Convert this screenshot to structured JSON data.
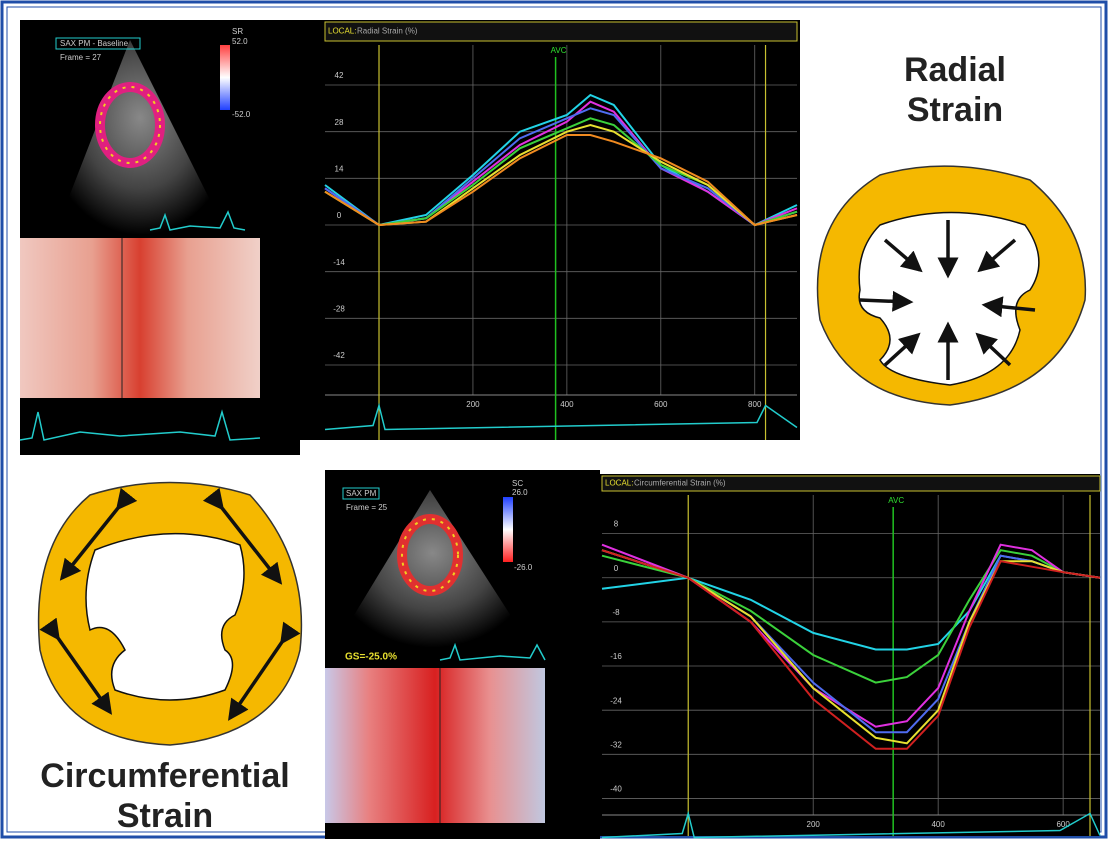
{
  "chart_data": [
    {
      "type": "line",
      "title_prefix": "LOCAL:",
      "title": "Radial Strain (%)",
      "x": [
        -115,
        0,
        100,
        200,
        300,
        400,
        450,
        500,
        600,
        700,
        800,
        890
      ],
      "series": [
        {
          "color": "#22d3e6",
          "values": [
            12,
            0,
            3,
            15,
            28,
            33,
            39,
            36,
            18,
            10,
            0,
            6
          ]
        },
        {
          "color": "#e030e0",
          "values": [
            11,
            0,
            2,
            13,
            24,
            31,
            37,
            34,
            17,
            10,
            0,
            5
          ]
        },
        {
          "color": "#4f6cf0",
          "values": [
            11,
            0,
            2,
            14,
            26,
            32,
            35,
            33,
            17,
            11,
            0,
            4
          ]
        },
        {
          "color": "#3bd13b",
          "values": [
            10,
            0,
            2,
            12,
            23,
            29,
            32,
            30,
            18,
            12,
            0,
            4
          ]
        },
        {
          "color": "#e8e030",
          "values": [
            10,
            0,
            1,
            11,
            21,
            28,
            30,
            28,
            19,
            12,
            0,
            3
          ]
        },
        {
          "color": "#f08a20",
          "values": [
            10,
            0,
            1,
            10,
            20,
            27,
            27,
            25,
            20,
            13,
            0,
            3
          ]
        }
      ],
      "xlim": [
        -115,
        890
      ],
      "xticks": [
        200,
        400,
        600,
        800
      ],
      "ylim": [
        -51,
        54
      ],
      "yticks": [
        42,
        28,
        14,
        0,
        -14,
        -28,
        -42
      ],
      "grid": true,
      "avc": {
        "label": "AVC",
        "x": 376
      },
      "frame_lines": [
        0,
        823
      ]
    },
    {
      "type": "line",
      "title_prefix": "LOCAL:",
      "title": "Circumferential Strain (%)",
      "x": [
        -138,
        0,
        100,
        200,
        300,
        350,
        400,
        450,
        500,
        550,
        600,
        659
      ],
      "series": [
        {
          "color": "#22d3e6",
          "values": [
            -2,
            0,
            -4,
            -10,
            -13,
            -13,
            -12,
            -6,
            4,
            3,
            1,
            0
          ]
        },
        {
          "color": "#3bd13b",
          "values": [
            4,
            0,
            -6,
            -14,
            -19,
            -18,
            -14,
            -4,
            5,
            4,
            1,
            0
          ]
        },
        {
          "color": "#e030e0",
          "values": [
            6,
            0,
            -8,
            -20,
            -27,
            -26,
            -20,
            -6,
            6,
            5,
            1,
            0
          ]
        },
        {
          "color": "#4f6cf0",
          "values": [
            5,
            0,
            -7,
            -19,
            -28,
            -28,
            -22,
            -8,
            4,
            3,
            1,
            0
          ]
        },
        {
          "color": "#e8e030",
          "values": [
            5,
            0,
            -7,
            -20,
            -29,
            -30,
            -24,
            -8,
            3,
            3,
            1,
            0
          ]
        },
        {
          "color": "#d02020",
          "values": [
            5,
            0,
            -8,
            -22,
            -31,
            -31,
            -25,
            -9,
            3,
            2,
            1,
            0
          ]
        }
      ],
      "xlim": [
        -138,
        659
      ],
      "xticks": [
        200,
        400,
        600
      ],
      "ylim": [
        -43,
        15
      ],
      "yticks": [
        8,
        0,
        -8,
        -16,
        -24,
        -32,
        -40
      ],
      "grid": true,
      "avc": {
        "label": "AVC",
        "x": 328
      },
      "frame_lines": [
        0,
        643
      ]
    }
  ],
  "radial_panel": {
    "label_1": "Radial",
    "label_2": "Strain",
    "colorbar_title": "SR",
    "colorbar_max": "52.0",
    "colorbar_min": "-52.0",
    "view": "SAX PM - Baseline",
    "frame": "Frame = 27"
  },
  "circumferential_panel": {
    "label_1": "Circumferential",
    "label_2": "Strain",
    "colorbar_title": "SC",
    "colorbar_max": "26.0",
    "colorbar_min": "-26.0",
    "view": "SAX PM",
    "frame": "Frame = 25",
    "global_strain": "GS=-25.0%"
  }
}
